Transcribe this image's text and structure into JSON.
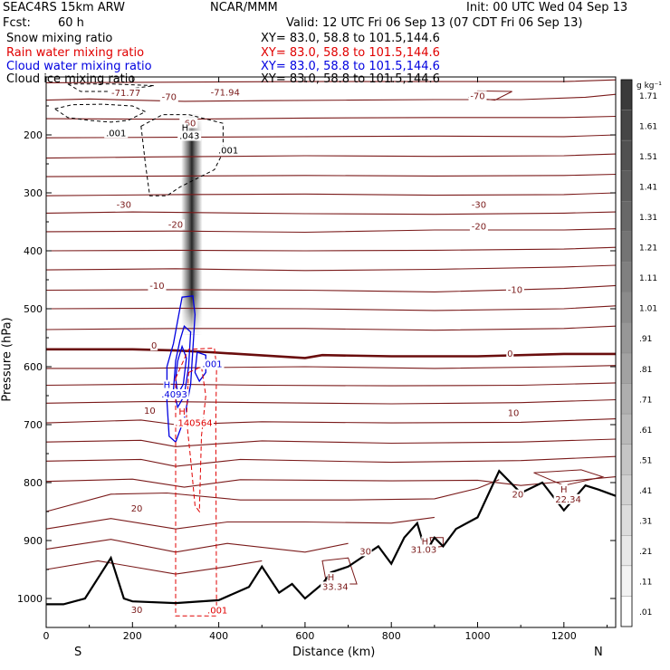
{
  "header": {
    "model": "SEAC4RS 15km ARW",
    "org": "NCAR/MMM",
    "init": "Init: 00 UTC Wed 04 Sep 13",
    "fcst_label": "Fcst:",
    "fcst_value": "60 h",
    "valid": "Valid: 12 UTC Fri 06 Sep 13 (07 CDT Fri 06 Sep 13)"
  },
  "fields": [
    {
      "name": "Snow mixing ratio",
      "xy": "XY=  83.0, 58.8 to 101.5,144.6",
      "color": "#000000"
    },
    {
      "name": "Rain water mixing ratio",
      "xy": "XY=  83.0, 58.8 to 101.5,144.6",
      "color": "#e00000"
    },
    {
      "name": "Cloud water mixing ratio",
      "xy": "XY=  83.0, 58.8 to 101.5,144.6",
      "color": "#0000e0"
    },
    {
      "name": "Cloud ice mixing ratio",
      "xy": "XY=  83.0, 58.8 to 101.5,144.6",
      "color": "#000000"
    }
  ],
  "chart_data": {
    "type": "contour cross-section",
    "xlabel": "Distance (km)",
    "ylabel": "Pressure (hPa)",
    "xlim": [
      0,
      1320
    ],
    "ylim": [
      1050,
      100
    ],
    "x_ticks": [
      0,
      200,
      400,
      600,
      800,
      1000,
      1200
    ],
    "y_ticks": [
      200,
      300,
      400,
      500,
      600,
      700,
      800,
      900,
      1000
    ],
    "end_labels": {
      "left": "S",
      "right": "N"
    },
    "colorbar": {
      "unit": "g kg⁻¹",
      "labels": [
        "1.71",
        "1.61",
        "1.51",
        "1.41",
        "1.31",
        "1.21",
        "1.11",
        "1.01",
        ".91",
        ".81",
        ".71",
        ".61",
        ".51",
        ".41",
        ".31",
        ".21",
        ".11",
        ".01"
      ]
    },
    "temperature_isotherms_C": [
      {
        "value": -70,
        "label": "-70"
      },
      {
        "value": -30,
        "label": "-30"
      },
      {
        "value": -20,
        "label": "-20"
      },
      {
        "value": -10,
        "label": "-10"
      },
      {
        "value": 0,
        "label": "0"
      },
      {
        "value": 10,
        "label": "10"
      },
      {
        "value": 20,
        "label": "20"
      },
      {
        "value": 30,
        "label": "30"
      }
    ],
    "extrema_labels": [
      {
        "text": "-71.77",
        "x_km": 185,
        "p_hpa": 133
      },
      {
        "text": "-71.94",
        "x_km": 415,
        "p_hpa": 132
      },
      {
        "text": "-70",
        "x_km": 285,
        "p_hpa": 140
      },
      {
        "text": "-70",
        "x_km": 1000,
        "p_hpa": 138
      },
      {
        "text": "-60",
        "x_km": 330,
        "p_hpa": 185
      },
      {
        "text": "H",
        "x_km": 322,
        "p_hpa": 193
      },
      {
        "text": ".043",
        "x_km": 332,
        "p_hpa": 207
      },
      {
        "text": ".001",
        "x_km": 162,
        "p_hpa": 202
      },
      {
        "text": ".001",
        "x_km": 422,
        "p_hpa": 232
      },
      {
        "text": "-30",
        "x_km": 180,
        "p_hpa": 326
      },
      {
        "text": "-30",
        "x_km": 1003,
        "p_hpa": 326
      },
      {
        "text": "-20",
        "x_km": 300,
        "p_hpa": 360
      },
      {
        "text": "-20",
        "x_km": 1003,
        "p_hpa": 363
      },
      {
        "text": "-10",
        "x_km": 257,
        "p_hpa": 466
      },
      {
        "text": "-10",
        "x_km": 1087,
        "p_hpa": 473
      },
      {
        "text": "0",
        "x_km": 250,
        "p_hpa": 569
      },
      {
        "text": "0",
        "x_km": 1075,
        "p_hpa": 583
      },
      {
        "text": ".001",
        "x_km": 385,
        "p_hpa": 601
      },
      {
        "text": "H",
        "x_km": 280,
        "p_hpa": 637
      },
      {
        "text": ".4093",
        "x_km": 297,
        "p_hpa": 653
      },
      {
        "text": "H",
        "x_km": 315,
        "p_hpa": 683
      },
      {
        "text": ".140564",
        "x_km": 342,
        "p_hpa": 702
      },
      {
        "text": "10",
        "x_km": 240,
        "p_hpa": 681
      },
      {
        "text": "10",
        "x_km": 1083,
        "p_hpa": 685
      },
      {
        "text": "20",
        "x_km": 210,
        "p_hpa": 850
      },
      {
        "text": "20",
        "x_km": 1093,
        "p_hpa": 826
      },
      {
        "text": "H",
        "x_km": 1200,
        "p_hpa": 817
      },
      {
        "text": "22.34",
        "x_km": 1210,
        "p_hpa": 834
      },
      {
        "text": "30",
        "x_km": 740,
        "p_hpa": 924
      },
      {
        "text": "H",
        "x_km": 660,
        "p_hpa": 969
      },
      {
        "text": "33.34",
        "x_km": 670,
        "p_hpa": 985
      },
      {
        "text": "H",
        "x_km": 878,
        "p_hpa": 907
      },
      {
        "text": "31.03",
        "x_km": 875,
        "p_hpa": 921
      },
      {
        "text": "30",
        "x_km": 210,
        "p_hpa": 1025
      },
      {
        "text": ".001",
        "x_km": 397,
        "p_hpa": 1026
      }
    ],
    "terrain_surface_p_hpa": [
      [
        0,
        1010
      ],
      [
        40,
        1010
      ],
      [
        90,
        1000
      ],
      [
        150,
        930
      ],
      [
        180,
        1000
      ],
      [
        200,
        1005
      ],
      [
        300,
        1008
      ],
      [
        400,
        1003
      ],
      [
        470,
        980
      ],
      [
        500,
        945
      ],
      [
        540,
        990
      ],
      [
        570,
        975
      ],
      [
        600,
        1000
      ],
      [
        640,
        975
      ],
      [
        660,
        955
      ],
      [
        700,
        945
      ],
      [
        740,
        925
      ],
      [
        770,
        910
      ],
      [
        800,
        940
      ],
      [
        830,
        895
      ],
      [
        860,
        870
      ],
      [
        880,
        920
      ],
      [
        900,
        895
      ],
      [
        920,
        910
      ],
      [
        950,
        880
      ],
      [
        1000,
        860
      ],
      [
        1050,
        780
      ],
      [
        1100,
        818
      ],
      [
        1150,
        800
      ],
      [
        1200,
        848
      ],
      [
        1250,
        805
      ],
      [
        1280,
        812
      ],
      [
        1320,
        823
      ]
    ]
  }
}
